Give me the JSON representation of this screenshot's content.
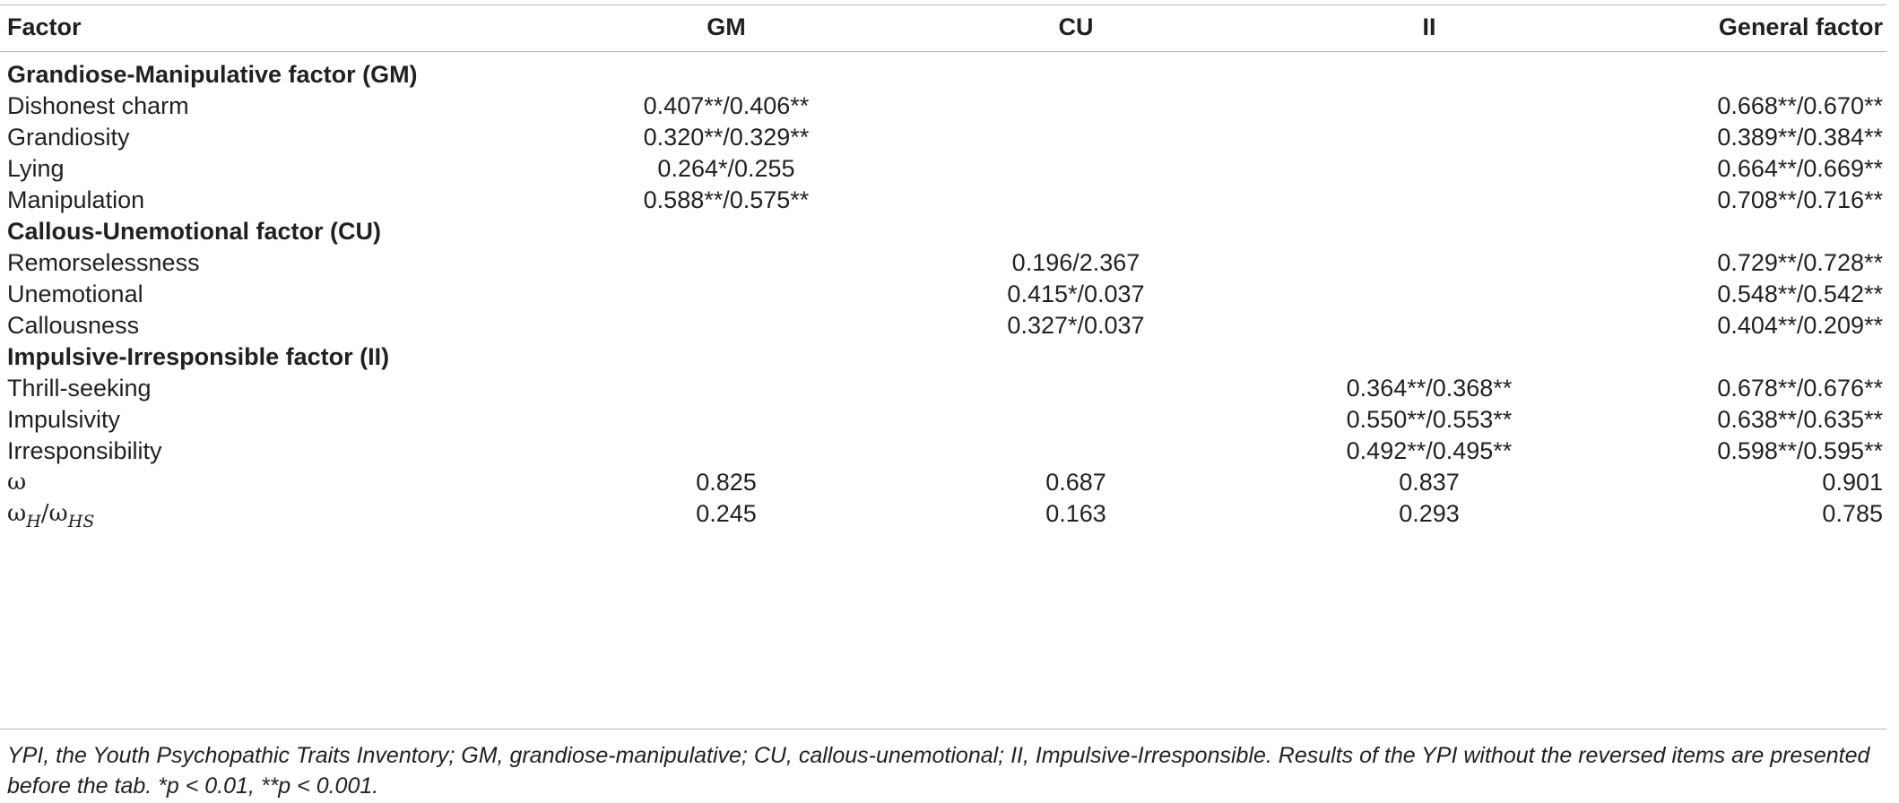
{
  "header": {
    "factor": "Factor",
    "gm": "GM",
    "cu": "CU",
    "ii": "II",
    "general": "General factor"
  },
  "sections": [
    {
      "title": "Grandiose-Manipulative factor (GM)",
      "rows": [
        {
          "label": "Dishonest charm",
          "gm": "0.407**/0.406**",
          "cu": "",
          "ii": "",
          "general": "0.668**/0.670**"
        },
        {
          "label": "Grandiosity",
          "gm": "0.320**/0.329**",
          "cu": "",
          "ii": "",
          "general": "0.389**/0.384**"
        },
        {
          "label": "Lying",
          "gm": "0.264*/0.255",
          "cu": "",
          "ii": "",
          "general": "0.664**/0.669**"
        },
        {
          "label": "Manipulation",
          "gm": "0.588**/0.575**",
          "cu": "",
          "ii": "",
          "general": "0.708**/0.716**"
        }
      ]
    },
    {
      "title": "Callous-Unemotional factor (CU)",
      "rows": [
        {
          "label": "Remorselessness",
          "gm": "",
          "cu": "0.196/2.367",
          "ii": "",
          "general": "0.729**/0.728**"
        },
        {
          "label": "Unemotional",
          "gm": "",
          "cu": "0.415*/0.037",
          "ii": "",
          "general": "0.548**/0.542**"
        },
        {
          "label": "Callousness",
          "gm": "",
          "cu": "0.327*/0.037",
          "ii": "",
          "general": "0.404**/0.209**"
        }
      ]
    },
    {
      "title": "Impulsive-Irresponsible factor (II)",
      "rows": [
        {
          "label": "Thrill-seeking",
          "gm": "",
          "cu": "",
          "ii": "0.364**/0.368**",
          "general": "0.678**/0.676**"
        },
        {
          "label": "Impulsivity",
          "gm": "",
          "cu": "",
          "ii": "0.550**/0.553**",
          "general": "0.638**/0.635**"
        },
        {
          "label": "Irresponsibility",
          "gm": "",
          "cu": "",
          "ii": "0.492**/0.495**",
          "general": "0.598**/0.595**"
        }
      ]
    }
  ],
  "omega_row": {
    "label": "ω",
    "gm": "0.825",
    "cu": "0.687",
    "ii": "0.837",
    "general": "0.901"
  },
  "omega_h_row": {
    "label_main": "ω",
    "label_sub1": "H",
    "label_sep": "/ω",
    "label_sub2": "HS",
    "gm": "0.245",
    "cu": "0.163",
    "ii": "0.293",
    "general": "0.785"
  },
  "footnote": "YPI, the Youth Psychopathic Traits Inventory; GM, grandiose-manipulative; CU, callous-unemotional; II, Impulsive-Irresponsible. Results of the YPI without the reversed items are presented before the tab. *p < 0.01, **p < 0.001."
}
